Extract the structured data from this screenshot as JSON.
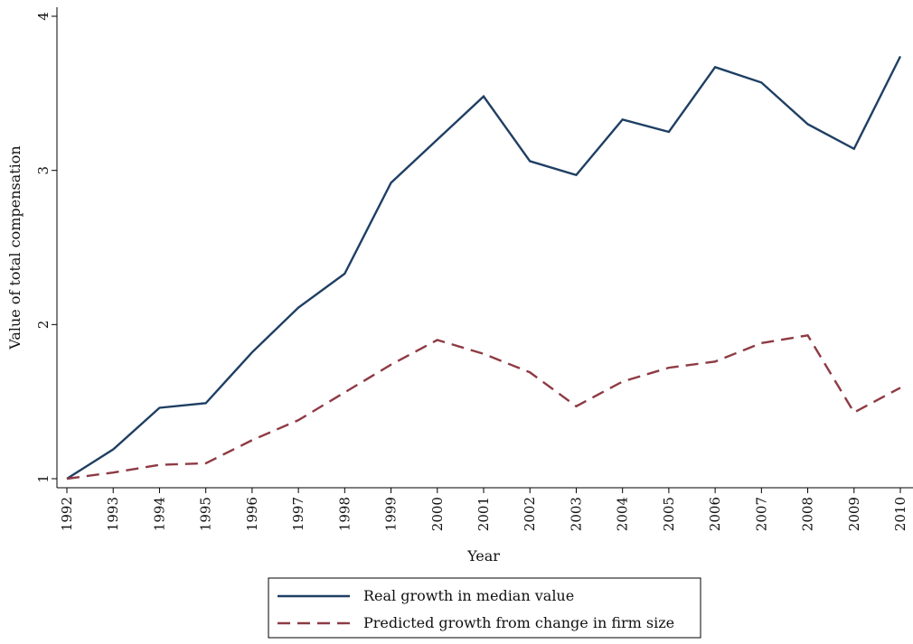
{
  "chart_data": {
    "type": "line",
    "title": "",
    "xlabel": "Year",
    "ylabel": "Value of total compensation",
    "x": [
      1992,
      1993,
      1994,
      1995,
      1996,
      1997,
      1998,
      1999,
      2000,
      2001,
      2002,
      2003,
      2004,
      2005,
      2006,
      2007,
      2008,
      2009,
      2010
    ],
    "x_ticks": [
      "1992",
      "1993",
      "1994",
      "1995",
      "1996",
      "1997",
      "1998",
      "1999",
      "2000",
      "2001",
      "2002",
      "2003",
      "2004",
      "2005",
      "2006",
      "2007",
      "2008",
      "2009",
      "2010"
    ],
    "y_ticks": [
      "1",
      "2",
      "3",
      "4"
    ],
    "ylim": [
      1,
      4
    ],
    "grid": false,
    "legend_position": "bottom",
    "series": [
      {
        "name": "Real growth in median value",
        "color": "#1f3f63",
        "style": "solid",
        "values": [
          1.0,
          1.19,
          1.46,
          1.49,
          1.82,
          2.11,
          2.33,
          2.92,
          3.2,
          3.48,
          3.06,
          2.97,
          3.33,
          3.25,
          3.67,
          3.57,
          3.3,
          3.14,
          3.74
        ]
      },
      {
        "name": "Predicted growth from change in firm size",
        "color": "#8e3a44",
        "style": "dashed",
        "values": [
          1.0,
          1.04,
          1.09,
          1.1,
          1.25,
          1.38,
          1.56,
          1.74,
          1.9,
          1.81,
          1.69,
          1.47,
          1.63,
          1.72,
          1.76,
          1.88,
          1.93,
          1.43,
          1.59
        ]
      }
    ]
  }
}
